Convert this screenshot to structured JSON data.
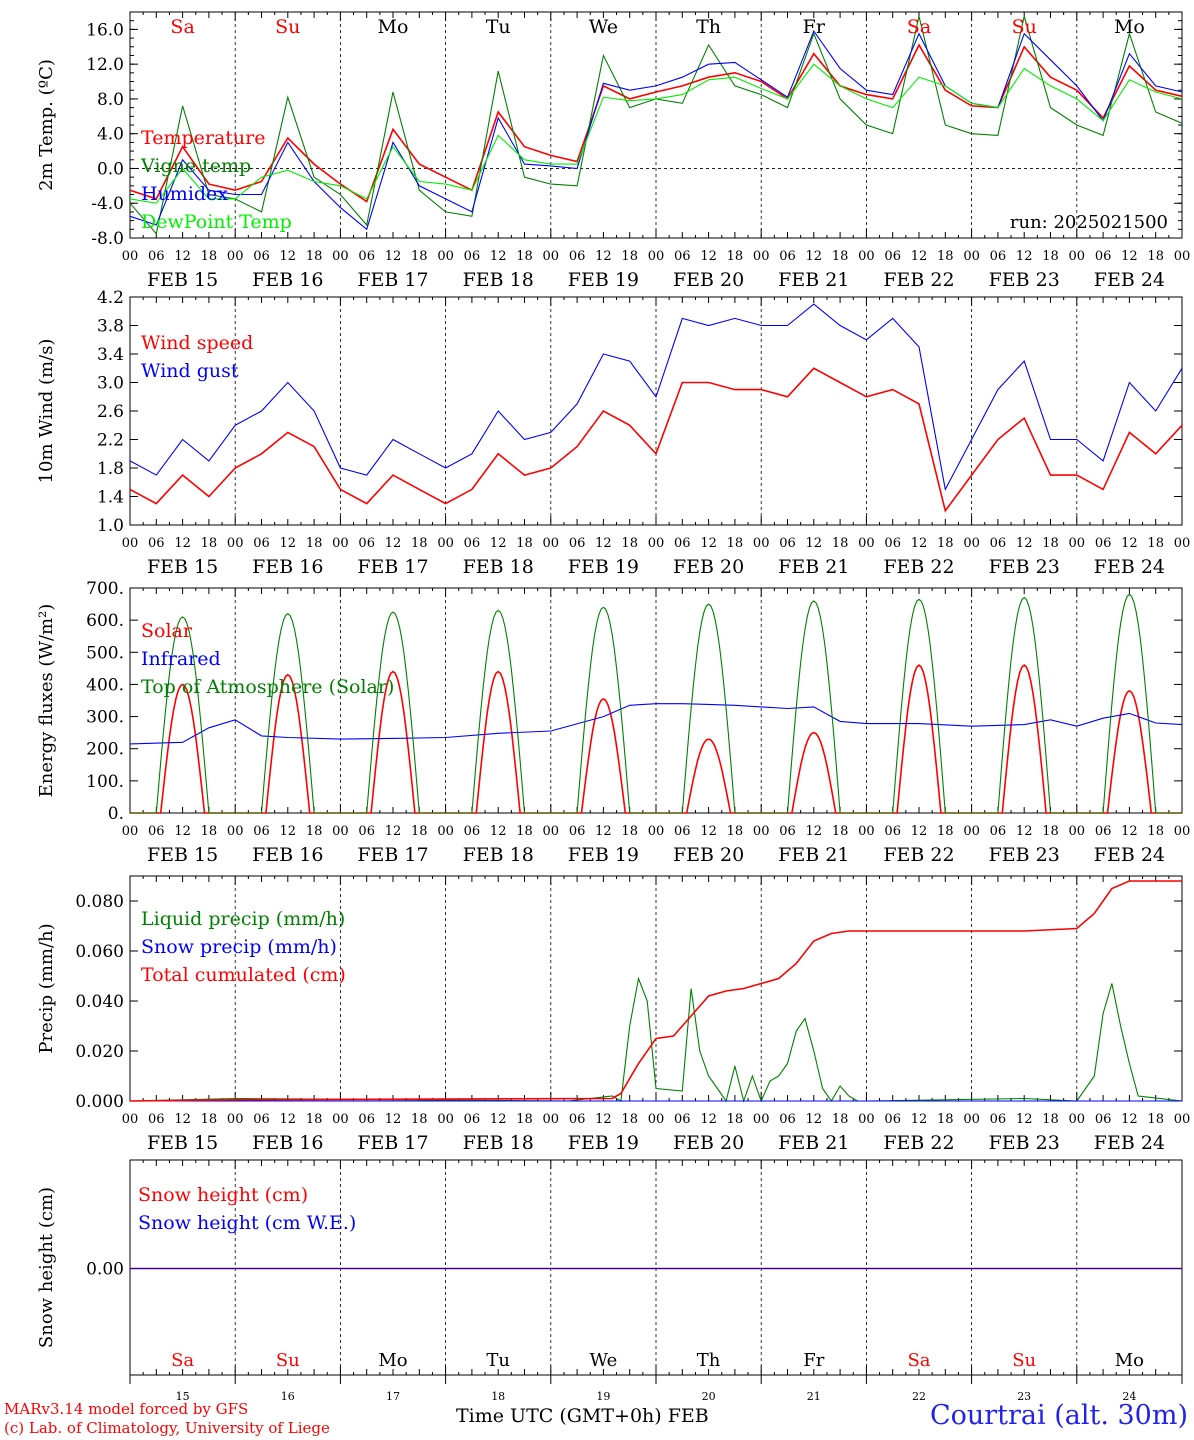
{
  "chart_data": [
    {
      "type": "line",
      "ylabel": "2m Temp. (ºC)",
      "ylim": [
        -8,
        18
      ],
      "yticks": [
        -8.0,
        -4.0,
        0.0,
        4.0,
        8.0,
        12.0,
        16.0
      ],
      "grid": "vertical dotted at day boundaries",
      "x_unit": "hours since FEB 15 00 UTC",
      "legend": "left",
      "annotation": "run: 2025021500",
      "series": [
        {
          "name": "Temperature",
          "color": "#ff0000",
          "x": [
            0,
            6,
            12,
            18,
            24,
            30,
            36,
            42,
            48,
            54,
            60,
            66,
            72,
            78,
            84,
            90,
            96,
            102,
            108,
            114,
            120,
            126,
            132,
            138,
            144,
            150,
            156,
            162,
            168,
            174,
            180,
            186,
            192,
            198,
            204,
            210,
            216,
            222,
            228,
            234,
            240
          ],
          "values": [
            -2.5,
            -3.5,
            2.5,
            -1.8,
            -2.5,
            -1.5,
            3.5,
            0.5,
            -1.8,
            -3.8,
            4.5,
            0.5,
            -1.0,
            -2.5,
            6.5,
            2.5,
            1.5,
            0.8,
            9.5,
            8.0,
            8.8,
            9.5,
            10.5,
            11.0,
            10.0,
            8.0,
            13.2,
            9.5,
            8.5,
            8.0,
            14.2,
            9.0,
            7.2,
            7.0,
            14.0,
            10.5,
            9.0,
            5.8,
            11.8,
            9.0,
            8.3
          ]
        },
        {
          "name": "Vigne temp",
          "color": "#008000",
          "x": [
            0,
            6,
            12,
            18,
            24,
            30,
            36,
            42,
            48,
            54,
            60,
            66,
            72,
            78,
            84,
            90,
            96,
            102,
            108,
            114,
            120,
            126,
            132,
            138,
            144,
            150,
            156,
            162,
            168,
            174,
            180,
            186,
            192,
            198,
            204,
            210,
            216,
            222,
            228,
            234,
            240
          ],
          "values": [
            -4.0,
            -7.5,
            7.2,
            -3.0,
            -3.5,
            -5.0,
            8.2,
            -1.0,
            -3.0,
            -6.5,
            8.8,
            -2.5,
            -5.0,
            -5.5,
            11.2,
            -1.0,
            -1.8,
            -2.0,
            13.0,
            7.0,
            8.0,
            7.5,
            14.2,
            9.5,
            8.5,
            7.0,
            15.5,
            8.0,
            5.0,
            4.0,
            17.5,
            5.0,
            4.0,
            3.8,
            17.5,
            7.0,
            5.0,
            3.8,
            15.5,
            6.5,
            5.2
          ]
        },
        {
          "name": "Humidex",
          "color": "#0000ff",
          "x": [
            0,
            6,
            12,
            18,
            24,
            30,
            36,
            42,
            48,
            54,
            60,
            66,
            72,
            78,
            84,
            90,
            96,
            102,
            108,
            114,
            120,
            126,
            132,
            138,
            144,
            150,
            156,
            162,
            168,
            174,
            180,
            186,
            192,
            198,
            204,
            210,
            216,
            222,
            228,
            234,
            240
          ],
          "values": [
            -5.5,
            -6.5,
            1.0,
            -2.5,
            -3.0,
            -3.0,
            3.0,
            -1.5,
            -4.5,
            -7.0,
            3.0,
            -2.0,
            -3.5,
            -5.0,
            5.8,
            0.5,
            0.3,
            0.0,
            9.8,
            9.0,
            9.5,
            10.5,
            12.0,
            12.2,
            10.2,
            8.2,
            15.8,
            11.5,
            9.0,
            8.5,
            15.5,
            9.5,
            7.5,
            7.0,
            15.5,
            12.5,
            9.5,
            5.5,
            13.2,
            9.5,
            8.8
          ]
        },
        {
          "name": "DewPoint Temp",
          "color": "#00ee00",
          "x": [
            0,
            6,
            12,
            18,
            24,
            30,
            36,
            42,
            48,
            54,
            60,
            66,
            72,
            78,
            84,
            90,
            96,
            102,
            108,
            114,
            120,
            126,
            132,
            138,
            144,
            150,
            156,
            162,
            168,
            174,
            180,
            186,
            192,
            198,
            204,
            210,
            216,
            222,
            228,
            234,
            240
          ],
          "values": [
            -3.5,
            -4.0,
            0.0,
            -3.5,
            -3.5,
            -1.0,
            -0.2,
            -1.5,
            -2.0,
            -3.5,
            2.5,
            -1.5,
            -1.8,
            -2.5,
            3.8,
            1.0,
            0.5,
            0.5,
            8.2,
            7.8,
            8.0,
            8.5,
            10.2,
            10.5,
            9.2,
            8.0,
            12.0,
            9.5,
            8.0,
            7.0,
            10.5,
            9.5,
            7.5,
            7.0,
            11.5,
            9.5,
            8.0,
            5.5,
            10.2,
            8.8,
            8.0
          ]
        }
      ]
    },
    {
      "type": "line",
      "ylabel": "10m Wind (m/s)",
      "ylim": [
        1.0,
        4.2
      ],
      "yticks": [
        1.0,
        1.4,
        1.8,
        2.2,
        2.6,
        3.0,
        3.4,
        3.8,
        4.2
      ],
      "legend": "left",
      "series": [
        {
          "name": "Wind speed",
          "color": "#ff0000",
          "x": [
            0,
            6,
            12,
            18,
            24,
            30,
            36,
            42,
            48,
            54,
            60,
            66,
            72,
            78,
            84,
            90,
            96,
            102,
            108,
            114,
            120,
            126,
            132,
            138,
            144,
            150,
            156,
            162,
            168,
            174,
            180,
            186,
            192,
            198,
            204,
            210,
            216,
            222,
            228,
            234,
            240
          ],
          "values": [
            1.5,
            1.3,
            1.7,
            1.4,
            1.8,
            2.0,
            2.3,
            2.1,
            1.5,
            1.3,
            1.7,
            1.5,
            1.3,
            1.5,
            2.0,
            1.7,
            1.8,
            2.1,
            2.6,
            2.4,
            2.0,
            3.0,
            3.0,
            2.9,
            2.9,
            2.8,
            3.2,
            3.0,
            2.8,
            2.9,
            2.7,
            1.2,
            1.7,
            2.2,
            2.5,
            1.7,
            1.7,
            1.5,
            2.3,
            2.0,
            2.4
          ]
        },
        {
          "name": "Wind gust",
          "color": "#0000ff",
          "x": [
            0,
            6,
            12,
            18,
            24,
            30,
            36,
            42,
            48,
            54,
            60,
            66,
            72,
            78,
            84,
            90,
            96,
            102,
            108,
            114,
            120,
            126,
            132,
            138,
            144,
            150,
            156,
            162,
            168,
            174,
            180,
            186,
            192,
            198,
            204,
            210,
            216,
            222,
            228,
            234,
            240
          ],
          "values": [
            1.9,
            1.7,
            2.2,
            1.9,
            2.4,
            2.6,
            3.0,
            2.6,
            1.8,
            1.7,
            2.2,
            2.0,
            1.8,
            2.0,
            2.6,
            2.2,
            2.3,
            2.7,
            3.4,
            3.3,
            2.8,
            3.9,
            3.8,
            3.9,
            3.8,
            3.8,
            4.1,
            3.8,
            3.6,
            3.9,
            3.5,
            1.5,
            2.2,
            2.9,
            3.3,
            2.2,
            2.2,
            1.9,
            3.0,
            2.6,
            3.2
          ]
        }
      ]
    },
    {
      "type": "line",
      "ylabel": "Energy fluxes (W/m²)",
      "ylim": [
        0,
        700
      ],
      "yticks": [
        0,
        100,
        200,
        300,
        400,
        500,
        600,
        700
      ],
      "ytick_labels": [
        "0.",
        "100.",
        "200.",
        "300.",
        "400.",
        "500.",
        "600.",
        "700."
      ],
      "legend": "left",
      "series": [
        {
          "name": "Solar",
          "color": "#ff0000",
          "diurnal_peak_hour": 12,
          "half_width_hours": 5,
          "daily_peaks": [
            400,
            430,
            440,
            440,
            355,
            230,
            250,
            460,
            460,
            380
          ]
        },
        {
          "name": "Infrared",
          "color": "#0000ff",
          "x": [
            0,
            12,
            18,
            24,
            30,
            36,
            48,
            60,
            72,
            84,
            96,
            108,
            114,
            120,
            126,
            132,
            138,
            144,
            150,
            156,
            162,
            168,
            180,
            192,
            204,
            210,
            216,
            222,
            228,
            234,
            240
          ],
          "values": [
            215,
            220,
            265,
            290,
            240,
            235,
            230,
            232,
            235,
            248,
            255,
            300,
            335,
            340,
            340,
            338,
            335,
            330,
            325,
            330,
            285,
            278,
            278,
            270,
            275,
            290,
            270,
            295,
            310,
            280,
            275
          ]
        },
        {
          "name": "Top of Atmosphere (Solar)",
          "color": "#008000",
          "diurnal_peak_hour": 12,
          "half_width_hours": 6,
          "daily_peaks": [
            610,
            620,
            625,
            630,
            640,
            650,
            660,
            665,
            670,
            680
          ]
        }
      ]
    },
    {
      "type": "line",
      "ylabel": "Precip (mm/h)",
      "ylim": [
        0.0,
        0.09
      ],
      "yticks": [
        0.0,
        0.02,
        0.04,
        0.06,
        0.08
      ],
      "ytick_labels": [
        "0.000",
        "0.020",
        "0.040",
        "0.060",
        "0.080"
      ],
      "legend": "left",
      "series": [
        {
          "name": "Liquid precip (mm/h)",
          "color": "#008000",
          "x": [
            0,
            24,
            100,
            110,
            112,
            114,
            116,
            118,
            120,
            126,
            128,
            130,
            132,
            134,
            136,
            138,
            140,
            142,
            144,
            146,
            148,
            150,
            152,
            154,
            156,
            158,
            160,
            162,
            164,
            166,
            168,
            204,
            216,
            220,
            222,
            224,
            226,
            228,
            230,
            240
          ],
          "values": [
            0,
            0.001,
            0,
            0.002,
            0.0,
            0.03,
            0.049,
            0.04,
            0.005,
            0.004,
            0.045,
            0.02,
            0.01,
            0.005,
            0.0,
            0.014,
            0.0,
            0.01,
            0.0,
            0.008,
            0.01,
            0.015,
            0.028,
            0.033,
            0.02,
            0.005,
            0.0,
            0.006,
            0.002,
            0.0,
            0.0,
            0.001,
            0.0,
            0.01,
            0.035,
            0.047,
            0.03,
            0.015,
            0.002,
            0.0
          ]
        },
        {
          "name": "Snow precip (mm/h)",
          "color": "#0000ff",
          "x": [
            0,
            240
          ],
          "values": [
            0,
            0
          ]
        },
        {
          "name": "Total cumulated (cm)",
          "color": "#ff0000",
          "x": [
            0,
            24,
            110,
            112,
            116,
            120,
            124,
            128,
            132,
            136,
            140,
            144,
            148,
            152,
            156,
            160,
            164,
            168,
            204,
            216,
            220,
            224,
            228,
            240
          ],
          "values": [
            0,
            0.0005,
            0.001,
            0.003,
            0.015,
            0.025,
            0.026,
            0.034,
            0.042,
            0.044,
            0.045,
            0.047,
            0.049,
            0.055,
            0.064,
            0.067,
            0.068,
            0.068,
            0.068,
            0.069,
            0.075,
            0.085,
            0.088,
            0.088
          ]
        }
      ]
    },
    {
      "type": "line",
      "ylabel": "Snow height (cm)",
      "yticks": [
        0.0
      ],
      "ytick_labels": [
        "0.00"
      ],
      "legend": "left",
      "series": [
        {
          "name": "Snow height (cm)",
          "color": "#ff0000",
          "x": [
            0,
            240
          ],
          "values": [
            0,
            0
          ]
        },
        {
          "name": "Snow height (cm W.E.)",
          "color": "#0000ff",
          "x": [
            0,
            240
          ],
          "values": [
            0,
            0
          ]
        }
      ]
    }
  ],
  "axis": {
    "hour_ticks": [
      "00",
      "06",
      "12",
      "18"
    ],
    "end_tick": "00",
    "day_dates": [
      "FEB 15",
      "FEB 16",
      "FEB 17",
      "FEB 18",
      "FEB 19",
      "FEB 20",
      "FEB 21",
      "FEB 22",
      "FEB 23",
      "FEB 24"
    ],
    "day_names": [
      "Sa",
      "Su",
      "Mo",
      "Tu",
      "We",
      "Th",
      "Fr",
      "Sa",
      "Su",
      "Mo"
    ],
    "day_name_colors": [
      "#ff0000",
      "#ff0000",
      "#000000",
      "#000000",
      "#000000",
      "#000000",
      "#000000",
      "#ff0000",
      "#ff0000",
      "#000000"
    ],
    "day_numbers": [
      "15",
      "16",
      "17",
      "18",
      "19",
      "20",
      "21",
      "22",
      "23",
      "24"
    ],
    "bottom_xlabel": "Time UTC (GMT+0h)",
    "bottom_month": "FEB"
  },
  "footer": {
    "credit_line1": "MARv3.14 model forced by GFS",
    "credit_line2": "(c) Lab. of Climatology, University of Liege",
    "location": "Courtrai (alt. 30m)"
  }
}
